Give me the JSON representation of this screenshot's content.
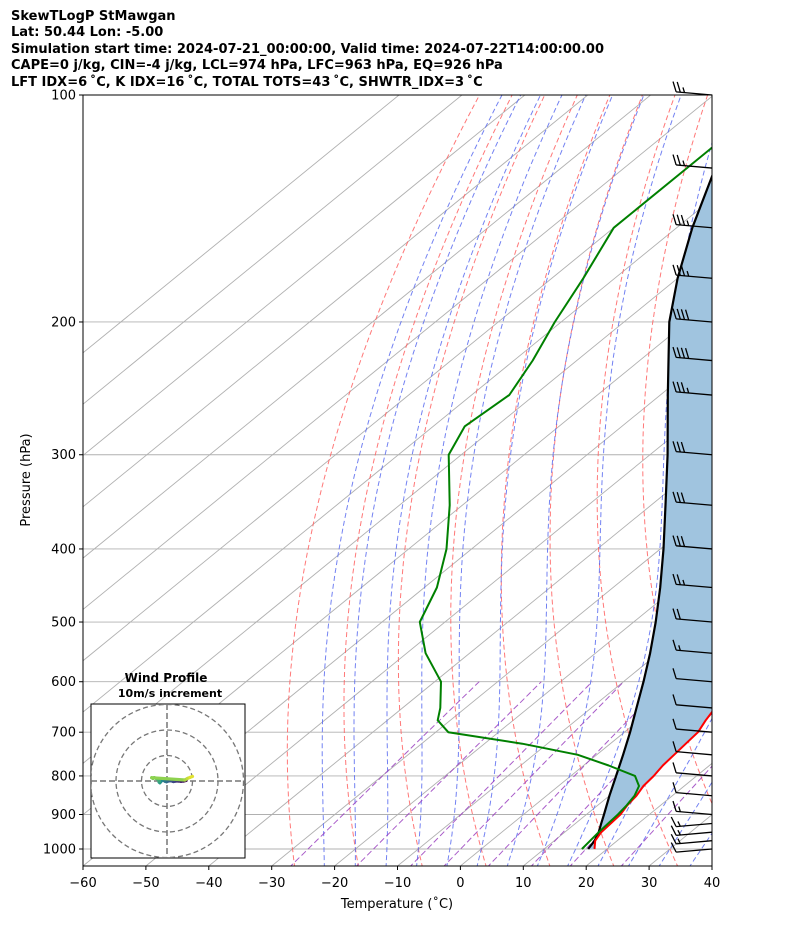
{
  "header": {
    "line1": "SkewTLogP StMawgan",
    "line2": "Lat: 50.44   Lon: -5.00",
    "line3": "Simulation start time: 2024-07-21_00:00:00, Valid time: 2024-07-22T14:00:00.00",
    "line4": "CAPE=0 j/kg, CIN=-4 j/kg, LCL=974 hPa, LFC=963 hPa, EQ=926 hPa",
    "line5": "LFT IDX=6 ˚C, K IDX=16 ˚C, TOTAL TOTS=43 ˚C, SHWTR_IDX=3 ˚C"
  },
  "chart_data": {
    "type": "skew-t log-p",
    "xlabel": "Temperature (˚C)",
    "ylabel": "Pressure (hPa)",
    "xlim": [
      -60,
      40
    ],
    "ylim": [
      1050,
      100
    ],
    "x_ticks": [
      -60,
      -50,
      -40,
      -30,
      -20,
      -10,
      0,
      10,
      20,
      30,
      40
    ],
    "y_ticks": [
      100,
      200,
      300,
      400,
      500,
      600,
      700,
      800,
      900,
      1000
    ],
    "y_scale": "log",
    "grid": true,
    "colors": {
      "temperature": "#ff0000",
      "dewpoint": "#008000",
      "parcel": "#000000",
      "shading": "#a0c4df",
      "dry_adiabats": "#ff6060",
      "moist_adiabats": "#5a6cf0",
      "mixing_ratio": "#9a40c0"
    },
    "temperature": {
      "pressure": [
        1000,
        975,
        950,
        925,
        900,
        875,
        850,
        825,
        800,
        775,
        750,
        725,
        700,
        675,
        650,
        600,
        550,
        500,
        450,
        400,
        350,
        300,
        275,
        250,
        225,
        200,
        175,
        150,
        125,
        100
      ],
      "values": [
        18.0,
        16.5,
        15.8,
        15.6,
        15.4,
        14.7,
        14.3,
        13.5,
        13.2,
        12.6,
        12.3,
        12.0,
        11.7,
        10.6,
        9.7,
        7.2,
        3.0,
        -2.2,
        -8.2,
        -15.0,
        -23.4,
        -33.2,
        -38.4,
        -43.5,
        -48.6,
        -52.0,
        -55.5,
        -60.0,
        -65.0,
        -70.0
      ]
    },
    "dewpoint": {
      "pressure": [
        1000,
        975,
        950,
        925,
        900,
        875,
        850,
        825,
        800,
        775,
        750,
        725,
        700,
        675,
        650,
        600,
        550,
        500,
        450,
        400,
        350,
        300,
        275,
        250,
        225,
        200,
        175,
        150,
        125,
        100
      ],
      "values": [
        16.0,
        15.7,
        15.4,
        15.2,
        15.0,
        14.6,
        14.0,
        12.8,
        10.2,
        4.0,
        -3.0,
        -14.0,
        -28.0,
        -32.0,
        -34.0,
        -39.0,
        -47.0,
        -54.0,
        -58.0,
        -64.0,
        -72.0,
        -82.0,
        -85.0,
        -84.0,
        -87.0,
        -91.0,
        -95.0,
        -100.0,
        -100.0,
        -100.0
      ]
    },
    "parcel": {
      "pressure": [
        1000,
        975,
        950,
        925,
        900,
        850,
        800,
        750,
        700,
        650,
        600,
        550,
        500,
        450,
        400,
        350,
        300,
        250,
        200,
        175,
        150,
        125,
        100
      ],
      "values": [
        17.0,
        16.4,
        15.4,
        14.1,
        12.8,
        10.0,
        7.2,
        4.2,
        0.9,
        -2.8,
        -6.8,
        -11.3,
        -16.5,
        -22.5,
        -29.5,
        -37.7,
        -47.2,
        -58.8,
        -72.8,
        -80.0,
        -87.5,
        -95.5,
        -104.0
      ]
    },
    "wind_barbs": {
      "units": "knots",
      "pressure": [
        1000,
        975,
        950,
        925,
        900,
        850,
        800,
        750,
        700,
        650,
        600,
        550,
        500,
        450,
        400,
        350,
        300,
        250,
        225,
        200,
        175,
        150,
        125,
        100
      ],
      "speed": [
        10,
        15,
        15,
        15,
        15,
        10,
        10,
        10,
        10,
        10,
        10,
        15,
        20,
        25,
        30,
        30,
        30,
        35,
        40,
        40,
        35,
        35,
        25,
        25
      ],
      "direction": [
        265,
        265,
        265,
        265,
        275,
        275,
        275,
        275,
        275,
        275,
        275,
        275,
        275,
        275,
        275,
        275,
        275,
        275,
        275,
        275,
        275,
        275,
        275,
        275
      ]
    },
    "hodograph": {
      "title": "Wind Profile",
      "subtitle": "10m/s increment",
      "rings_ms": [
        10,
        20,
        30
      ],
      "u": [
        7.5,
        6.5,
        5.5,
        4.5,
        3.5,
        2.5,
        1.5,
        0.5,
        -0.2,
        -0.8,
        -1.6,
        -2.2,
        -2.8,
        -3.1,
        -3.0,
        -3.6,
        -4.2,
        -5.0,
        -5.5,
        -6.0,
        7.0,
        8.0,
        9.0,
        10.0
      ],
      "v": [
        0.2,
        0.0,
        -0.1,
        0.0,
        0.0,
        -0.2,
        0.1,
        0.0,
        -0.3,
        -0.1,
        0.5,
        0.0,
        -0.7,
        -0.4,
        0.1,
        0.7,
        1.0,
        1.3,
        1.0,
        1.3,
        0.4,
        1.0,
        1.4,
        1.8
      ]
    }
  }
}
